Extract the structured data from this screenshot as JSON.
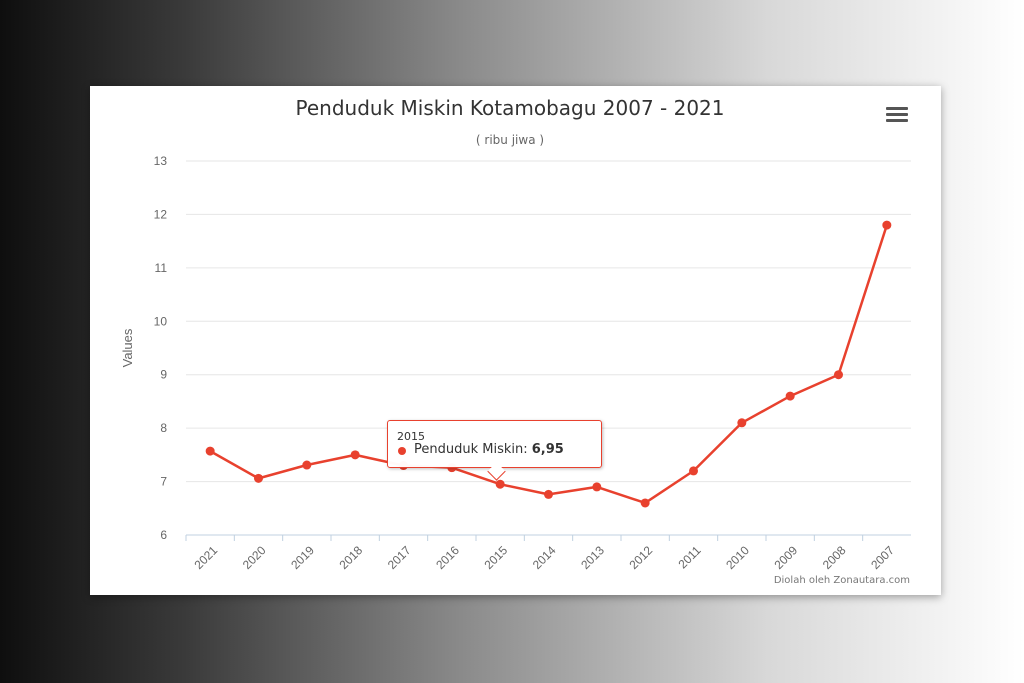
{
  "chart_data": {
    "type": "line",
    "title": "Penduduk Miskin Kotamobagu 2007 - 2021",
    "subtitle": "( ribu jiwa )",
    "ylabel": "Values",
    "xlabel": "",
    "credit": "Diolah oleh Zonautara.com",
    "ylim": [
      6,
      13
    ],
    "yticks": [
      "6",
      "7",
      "8",
      "9",
      "10",
      "11",
      "12",
      "13"
    ],
    "categories": [
      "2021",
      "2020",
      "2019",
      "2018",
      "2017",
      "2016",
      "2015",
      "2014",
      "2013",
      "2012",
      "2011",
      "2010",
      "2009",
      "2008",
      "2007"
    ],
    "series": [
      {
        "name": "Penduduk Miskin",
        "color": "#e8412e",
        "values": [
          7.57,
          7.06,
          7.31,
          7.5,
          7.3,
          7.26,
          6.95,
          6.76,
          6.9,
          6.6,
          7.2,
          8.1,
          8.6,
          9.0,
          11.8
        ]
      }
    ],
    "grid": true,
    "legend": "none",
    "tooltip": {
      "x": "2015",
      "series_name": "Penduduk Miskin",
      "value": "6,95"
    }
  },
  "menu_icon": "hamburger-menu-icon"
}
